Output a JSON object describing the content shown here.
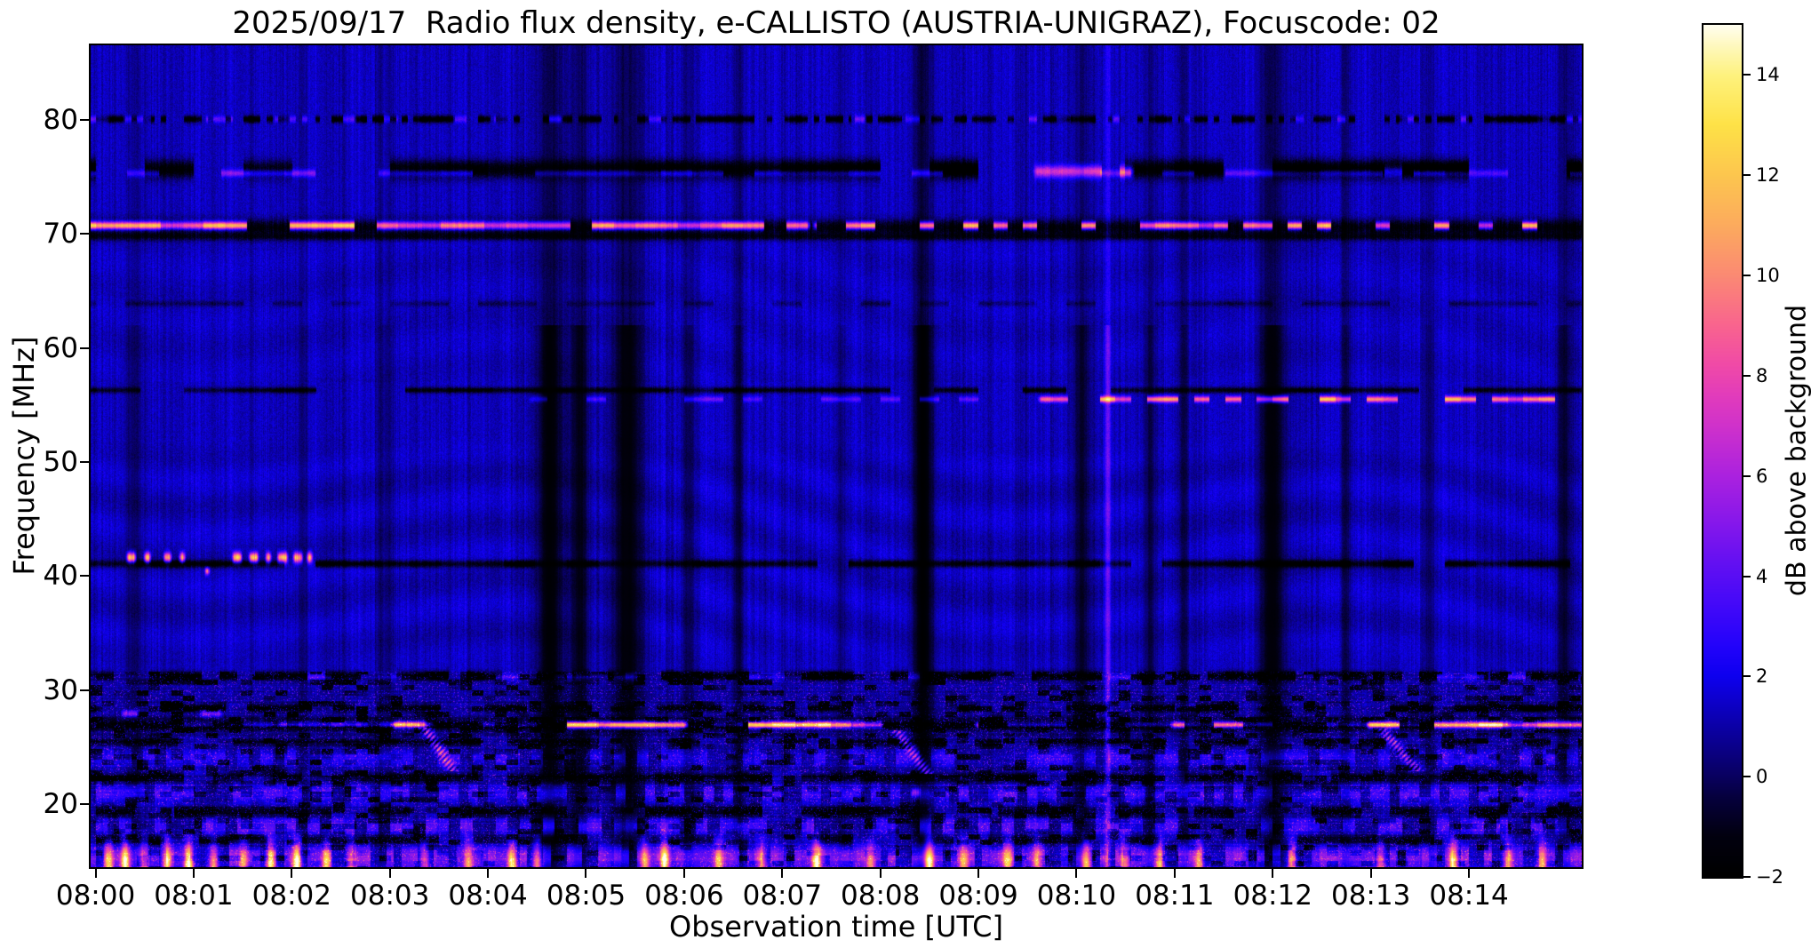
{
  "chart_data": {
    "type": "heatmap",
    "title": "2025/09/17  Radio flux density, e-CALLISTO (AUSTRIA-UNIGRAZ), Focuscode: 02",
    "xlabel": "Observation time [UTC]",
    "ylabel": "Frequency [MHz]",
    "x_ticks": [
      "08:00",
      "08:01",
      "08:02",
      "08:03",
      "08:04",
      "08:05",
      "08:06",
      "08:07",
      "08:08",
      "08:09",
      "08:10",
      "08:11",
      "08:12",
      "08:13",
      "08:14"
    ],
    "x_tick_minutes": [
      0,
      1,
      2,
      3,
      4,
      5,
      6,
      7,
      8,
      9,
      10,
      11,
      12,
      13,
      14
    ],
    "x_range_minutes": [
      -0.05,
      15.15
    ],
    "y_ticks": [
      80,
      70,
      60,
      50,
      40,
      30,
      20
    ],
    "y_range_mhz": [
      14.45,
      86.55
    ],
    "grid": false,
    "colorbar": {
      "label": "dB above background",
      "ticks": [
        14,
        12,
        10,
        8,
        6,
        4,
        2,
        0,
        -2
      ],
      "range": [
        -2,
        15
      ]
    },
    "colormap_stops": [
      [
        -2,
        "#000000"
      ],
      [
        -1.2,
        "#02000f"
      ],
      [
        -0.4,
        "#06003f"
      ],
      [
        0,
        "#090060"
      ],
      [
        0.7,
        "#0b0092"
      ],
      [
        1.4,
        "#0d00c4"
      ],
      [
        2,
        "#0e00ef"
      ],
      [
        2.6,
        "#2303fb"
      ],
      [
        3.4,
        "#4309f9"
      ],
      [
        4.2,
        "#6110f3"
      ],
      [
        5,
        "#8417ec"
      ],
      [
        6,
        "#ab22df"
      ],
      [
        7,
        "#d032cb"
      ],
      [
        7.6,
        "#e23cbc"
      ],
      [
        8.2,
        "#f04aa8"
      ],
      [
        9,
        "#f9648f"
      ],
      [
        10,
        "#fb8a74"
      ],
      [
        11,
        "#fcab5e"
      ],
      [
        12,
        "#fdc64f"
      ],
      [
        13,
        "#fee247"
      ],
      [
        14,
        "#fef27e"
      ],
      [
        14.6,
        "#fff9c0"
      ],
      [
        15,
        "#fffef0"
      ]
    ],
    "background": {
      "base_db": 1.3,
      "noise_db": 1.05,
      "speckle_region_top_mhz": 31.6,
      "speckle_base_db": 0.85
    },
    "features": {
      "bands_dark": [
        {
          "name": "rfi-80.1MHz-dotted",
          "f": 80.1,
          "bw": 0.3,
          "amp": -3.4,
          "t0": -0.1,
          "t1": 15.2,
          "dash": 0.06,
          "duty": 0.6
        },
        {
          "name": "rfi-75.7MHz-dark-blocks",
          "f": 75.7,
          "bw": 0.8,
          "amp": -3.6,
          "t0": -0.1,
          "t1": 15.2,
          "dash": 0.5,
          "duty": 0.75
        },
        {
          "name": "rfi-70.6MHz-dark-base",
          "f": 70.55,
          "bw": 0.75,
          "amp": -3.4,
          "t0": -0.1,
          "t1": 15.2,
          "dash": 9,
          "duty": 1
        },
        {
          "name": "rfi-69.8MHz-line",
          "f": 69.75,
          "bw": 0.3,
          "amp": -2.0,
          "t0": -0.1,
          "t1": 15.2,
          "dash": 9,
          "duty": 1
        },
        {
          "name": "rfi-63.9MHz-faint",
          "f": 63.9,
          "bw": 0.25,
          "amp": -1.2,
          "t0": -0.1,
          "t1": 15.2,
          "dash": 0.3,
          "duty": 0.5
        },
        {
          "name": "rfi-56.3MHz-line",
          "f": 56.3,
          "bw": 0.25,
          "amp": -2.5,
          "t0": -0.1,
          "t1": 15.2,
          "dash": 0.45,
          "duty": 0.8
        },
        {
          "name": "rfi-41MHz-line",
          "f": 41.05,
          "bw": 0.32,
          "amp": -3.0,
          "t0": -0.1,
          "t1": 15.2,
          "dash": 0.32,
          "duty": 0.8
        },
        {
          "name": "rfi-31.2MHz-dotted",
          "f": 31.2,
          "bw": 0.4,
          "amp": -3.2,
          "t0": -0.1,
          "t1": 15.2,
          "dash": 0.18,
          "duty": 0.6
        },
        {
          "name": "rfi-28.4MHz-dotted",
          "f": 28.4,
          "bw": 0.35,
          "amp": -2.8,
          "t0": -0.1,
          "t1": 15.2,
          "dash": 0.22,
          "duty": 0.55
        },
        {
          "name": "rfi-26.9MHz-dark-base",
          "f": 26.9,
          "bw": 0.55,
          "amp": -3.2,
          "t0": -0.1,
          "t1": 15.2,
          "dash": 9,
          "duty": 1
        },
        {
          "name": "rfi-25.4MHz-speckled",
          "f": 25.4,
          "bw": 0.35,
          "amp": -2.4,
          "t0": -0.1,
          "t1": 15.2,
          "dash": 0.28,
          "duty": 0.6
        },
        {
          "name": "rfi-22.3MHz-dark",
          "f": 22.3,
          "bw": 0.45,
          "amp": -2.6,
          "t0": -0.1,
          "t1": 15.2,
          "dash": 0.3,
          "duty": 0.65
        },
        {
          "name": "rfi-19.3MHz-dark",
          "f": 19.3,
          "bw": 0.5,
          "amp": -2.8,
          "t0": -0.1,
          "t1": 15.2,
          "dash": 0.4,
          "duty": 0.7
        },
        {
          "name": "rfi-16.8MHz-dark",
          "f": 16.8,
          "bw": 0.4,
          "amp": -2.2,
          "t0": -0.1,
          "t1": 15.2,
          "dash": 0.35,
          "duty": 0.6
        }
      ],
      "bands_bright": [
        {
          "name": "dots-80.1MHz-blue",
          "f": 80.1,
          "bw": 0.3,
          "amp": 2.4,
          "t0": -0.1,
          "t1": 15.2,
          "dash": 0.14,
          "duty": 0.3
        },
        {
          "name": "dashes-75.3MHz-blue",
          "f": 75.35,
          "bw": 0.3,
          "amp": 3.0,
          "t0": -0.1,
          "t1": 15.2,
          "dash": 0.32,
          "duty": 0.55
        },
        {
          "name": "patch-75.5MHz-violet-a",
          "f": 75.5,
          "bw": 0.5,
          "amp": 5.5,
          "t0": 9.55,
          "t1": 10.6,
          "dash": 0.18,
          "duty": 0.5
        },
        {
          "name": "patch-75.5MHz-violet-b",
          "f": 75.5,
          "bw": 0.5,
          "amp": 5.0,
          "t0": 12.55,
          "t1": 13.5,
          "dash": 0.18,
          "duty": 0.5
        },
        {
          "name": "carrier-70.8MHz-bright-left",
          "f": 70.75,
          "bw": 0.34,
          "amp": 11.5,
          "t0": -0.1,
          "t1": 7.3,
          "dash": 0.22,
          "duty": 0.8
        },
        {
          "name": "carrier-70.8MHz-bright-right",
          "f": 70.75,
          "bw": 0.32,
          "amp": 10.5,
          "t0": 7.3,
          "t1": 15.2,
          "dash": 0.15,
          "duty": 0.42
        },
        {
          "name": "carrier-55.5MHz-weak",
          "f": 55.5,
          "bw": 0.24,
          "amp": 2.6,
          "t0": 4.4,
          "t1": 9.6,
          "dash": 0.2,
          "duty": 0.5
        },
        {
          "name": "carrier-55.5MHz-bright",
          "f": 55.5,
          "bw": 0.26,
          "amp": 8.5,
          "t0": 9.6,
          "t1": 15.2,
          "dash": 0.16,
          "duty": 0.6
        },
        {
          "name": "dots-31.1MHz-blue",
          "f": 31.1,
          "bw": 0.3,
          "amp": 2.2,
          "t0": -0.1,
          "t1": 15.2,
          "dash": 0.24,
          "duty": 0.3
        },
        {
          "name": "line-27MHz-blue",
          "f": 26.95,
          "bw": 0.22,
          "amp": 3.4,
          "t0": 1.85,
          "t1": 3.45,
          "dash": 0.6,
          "duty": 0.95
        },
        {
          "name": "carrier-27MHz-orange-1",
          "f": 26.9,
          "bw": 0.28,
          "amp": 11.0,
          "t0": 4.55,
          "t1": 6.05,
          "dash": 0.3,
          "duty": 0.85
        },
        {
          "name": "carrier-27MHz-orange-2",
          "f": 26.9,
          "bw": 0.28,
          "amp": 11.0,
          "t0": 6.5,
          "t1": 8.05,
          "dash": 0.35,
          "duty": 0.85
        },
        {
          "name": "carrier-27MHz-pink-3",
          "f": 26.9,
          "bw": 0.26,
          "amp": 7.0,
          "t0": 8.95,
          "t1": 9.65,
          "dash": 0.25,
          "duty": 0.7
        },
        {
          "name": "carrier-27MHz-orange-4",
          "f": 26.9,
          "bw": 0.28,
          "amp": 10.5,
          "t0": 10.95,
          "t1": 12.4,
          "dash": 0.3,
          "duty": 0.8
        },
        {
          "name": "carrier-27MHz-orange-5",
          "f": 26.9,
          "bw": 0.28,
          "amp": 11.0,
          "t0": 12.95,
          "t1": 15.2,
          "dash": 0.35,
          "duty": 0.85
        },
        {
          "name": "dashes-27MHz-blue-misc",
          "f": 26.95,
          "bw": 0.22,
          "amp": 2.6,
          "t0": -0.1,
          "t1": 15.2,
          "dash": 0.3,
          "duty": 0.4
        },
        {
          "name": "speckle-24MHz-blue",
          "f": 24.0,
          "bw": 0.85,
          "amp": 1.8,
          "t0": -0.1,
          "t1": 15.2,
          "dash": 0.12,
          "duty": 0.55
        },
        {
          "name": "speckle-21MHz-blue",
          "f": 20.9,
          "bw": 0.85,
          "amp": 2.4,
          "t0": -0.1,
          "t1": 15.2,
          "dash": 0.1,
          "duty": 0.6
        },
        {
          "name": "speckle-18MHz-bright",
          "f": 18.0,
          "bw": 0.75,
          "amp": 3.0,
          "t0": -0.1,
          "t1": 15.2,
          "dash": 0.12,
          "duty": 0.5
        },
        {
          "name": "speckle-15.3MHz-bright",
          "f": 15.3,
          "bw": 0.95,
          "amp": 3.6,
          "t0": -0.1,
          "t1": 15.2,
          "dash": 0.08,
          "duty": 0.6
        }
      ],
      "blobs": [
        {
          "name": "burst-41.6MHz",
          "t0": 0.3,
          "t1": 0.42,
          "f": 41.6,
          "bw": 0.45,
          "amp": 13
        },
        {
          "name": "burst-41.6MHz",
          "t0": 0.48,
          "t1": 0.57,
          "f": 41.6,
          "bw": 0.45,
          "amp": 13
        },
        {
          "name": "burst-41.6MHz",
          "t0": 0.68,
          "t1": 0.78,
          "f": 41.6,
          "bw": 0.45,
          "amp": 13
        },
        {
          "name": "burst-41.6MHz",
          "t0": 0.84,
          "t1": 0.92,
          "f": 41.6,
          "bw": 0.45,
          "amp": 12.5
        },
        {
          "name": "burst-40.4MHz",
          "t0": 1.1,
          "t1": 1.17,
          "f": 40.4,
          "bw": 0.3,
          "amp": 10
        },
        {
          "name": "burst-41.6MHz",
          "t0": 1.38,
          "t1": 1.5,
          "f": 41.6,
          "bw": 0.45,
          "amp": 13
        },
        {
          "name": "burst-41.6MHz",
          "t0": 1.55,
          "t1": 1.67,
          "f": 41.6,
          "bw": 0.45,
          "amp": 13
        },
        {
          "name": "burst-41.6MHz",
          "t0": 1.72,
          "t1": 1.8,
          "f": 41.6,
          "bw": 0.45,
          "amp": 12.5
        },
        {
          "name": "burst-41.6MHz",
          "t0": 1.84,
          "t1": 1.97,
          "f": 41.6,
          "bw": 0.45,
          "amp": 13
        },
        {
          "name": "burst-41.6MHz",
          "t0": 2.0,
          "t1": 2.12,
          "f": 41.6,
          "bw": 0.45,
          "amp": 13
        },
        {
          "name": "burst-41.6MHz",
          "t0": 2.14,
          "t1": 2.22,
          "f": 41.6,
          "bw": 0.45,
          "amp": 13
        },
        {
          "name": "patch-27.9MHz-pink",
          "t0": 0.25,
          "t1": 0.45,
          "f": 27.9,
          "bw": 0.3,
          "amp": 6
        },
        {
          "name": "patch-27.9MHz-pink",
          "t0": 1.05,
          "t1": 1.3,
          "f": 27.9,
          "bw": 0.3,
          "amp": 5
        },
        {
          "name": "patch-26.9MHz-orange",
          "t0": 3.02,
          "t1": 3.38,
          "f": 26.9,
          "bw": 0.3,
          "amp": 9.5
        },
        {
          "name": "spot-21MHz-pink",
          "t0": 8.3,
          "t1": 8.42,
          "f": 21.0,
          "bw": 0.45,
          "amp": 7
        }
      ],
      "vertical_dark_columns": [
        {
          "t": 0.38,
          "w": 0.1,
          "s": 0.35
        },
        {
          "t": 2.12,
          "w": 0.06,
          "s": 0.25
        },
        {
          "t": 2.95,
          "w": 0.08,
          "s": 0.3
        },
        {
          "t": 4.63,
          "w": 0.13,
          "s": 0.85
        },
        {
          "t": 4.93,
          "w": 0.1,
          "s": 0.7
        },
        {
          "t": 5.42,
          "w": 0.16,
          "s": 0.8
        },
        {
          "t": 6.05,
          "w": 0.06,
          "s": 0.45
        },
        {
          "t": 6.55,
          "w": 0.06,
          "s": 0.5
        },
        {
          "t": 7.6,
          "w": 0.05,
          "s": 0.3
        },
        {
          "t": 8.44,
          "w": 0.11,
          "s": 0.9
        },
        {
          "t": 10.05,
          "w": 0.09,
          "s": 0.6
        },
        {
          "t": 10.75,
          "w": 0.06,
          "s": 0.5
        },
        {
          "t": 11.1,
          "w": 0.05,
          "s": 0.45
        },
        {
          "t": 12.0,
          "w": 0.14,
          "s": 0.8
        },
        {
          "t": 12.75,
          "w": 0.05,
          "s": 0.4
        },
        {
          "t": 13.6,
          "w": 0.06,
          "s": 0.35
        },
        {
          "t": 14.97,
          "w": 0.08,
          "s": 0.55
        }
      ],
      "vertical_bright_lines": [
        {
          "t": 10.32,
          "w": 0.028,
          "amp": 3.5
        }
      ],
      "bottom_spikes": {
        "f_top": 18.2,
        "width_min": 0.045,
        "events": [
          {
            "t": 0.13,
            "amp": 9
          },
          {
            "t": 0.3,
            "amp": 12
          },
          {
            "t": 0.5,
            "amp": 8
          },
          {
            "t": 0.72,
            "amp": 10
          },
          {
            "t": 0.95,
            "amp": 13
          },
          {
            "t": 1.2,
            "amp": 9
          },
          {
            "t": 1.5,
            "amp": 8
          },
          {
            "t": 1.78,
            "amp": 11
          },
          {
            "t": 2.05,
            "amp": 13
          },
          {
            "t": 2.35,
            "amp": 9
          },
          {
            "t": 2.6,
            "amp": 8
          },
          {
            "t": 3.35,
            "amp": 7
          },
          {
            "t": 3.8,
            "amp": 8
          },
          {
            "t": 4.25,
            "amp": 12
          },
          {
            "t": 4.5,
            "amp": 9
          },
          {
            "t": 5.6,
            "amp": 8
          },
          {
            "t": 5.8,
            "amp": 12
          },
          {
            "t": 6.35,
            "amp": 8
          },
          {
            "t": 6.8,
            "amp": 7
          },
          {
            "t": 7.35,
            "amp": 12
          },
          {
            "t": 7.9,
            "amp": 7
          },
          {
            "t": 8.5,
            "amp": 13
          },
          {
            "t": 8.85,
            "amp": 8
          },
          {
            "t": 9.3,
            "amp": 9
          },
          {
            "t": 9.6,
            "amp": 7
          },
          {
            "t": 10.1,
            "amp": 10
          },
          {
            "t": 10.5,
            "amp": 8
          },
          {
            "t": 10.85,
            "amp": 9
          },
          {
            "t": 11.25,
            "amp": 8
          },
          {
            "t": 12.2,
            "amp": 7
          },
          {
            "t": 13.1,
            "amp": 8
          },
          {
            "t": 13.85,
            "amp": 13
          },
          {
            "t": 14.4,
            "amp": 9
          },
          {
            "t": 14.75,
            "amp": 8
          }
        ]
      },
      "diagonal_streaks": [
        {
          "t0": 3.38,
          "f0": 26.3,
          "t1": 3.62,
          "f1": 23.2,
          "amp": 8,
          "w": 0.06
        },
        {
          "t0": 8.2,
          "f0": 26.0,
          "t1": 8.45,
          "f1": 23.0,
          "amp": 7,
          "w": 0.06
        },
        {
          "t0": 13.15,
          "f0": 26.2,
          "t1": 13.45,
          "f1": 23.2,
          "amp": 7,
          "w": 0.06
        }
      ]
    }
  }
}
